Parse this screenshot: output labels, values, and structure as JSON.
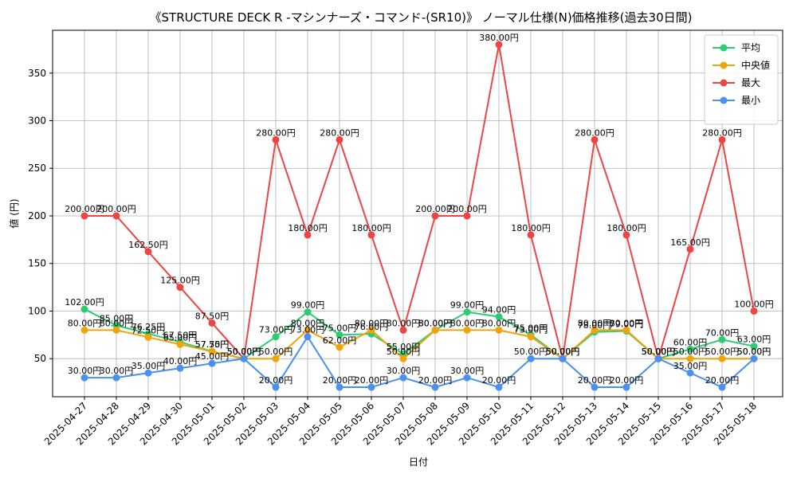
{
  "chart_data": {
    "type": "line",
    "title": "《STRUCTURE DECK R -マシンナーズ・コマンド-(SR10)》 ノーマル仕様(N)価格推移(過去30日間)",
    "xlabel": "日付",
    "ylabel": "値 (円)",
    "ylim": [
      10,
      395
    ],
    "yticks": [
      50,
      100,
      150,
      200,
      250,
      300,
      350
    ],
    "grid": true,
    "legend_position": "top-right",
    "label_suffix": "円",
    "categories": [
      "2025-04-27",
      "2025-04-28",
      "2025-04-29",
      "2025-04-30",
      "2025-05-01",
      "2025-05-02",
      "2025-05-03",
      "2025-05-04",
      "2025-05-05",
      "2025-05-06",
      "2025-05-07",
      "2025-05-08",
      "2025-05-09",
      "2025-05-10",
      "2025-05-11",
      "2025-05-12",
      "2025-05-13",
      "2025-05-14",
      "2025-05-15",
      "2025-05-16",
      "2025-05-17",
      "2025-05-18"
    ],
    "series": [
      {
        "name": "平均",
        "color": "#2ecc71",
        "values": [
          102,
          85,
          76.25,
          67.5,
          57.75,
          50,
          73,
          99,
          75,
          76,
          55,
          80,
          99,
          94,
          75,
          50,
          78,
          79,
          50,
          60,
          70,
          63
        ]
      },
      {
        "name": "中央値",
        "color": "#f0a30a",
        "values": [
          80,
          80,
          72.5,
          65,
          57.5,
          50,
          50,
          80,
          62,
          80,
          50,
          80,
          80,
          80,
          73,
          50,
          80,
          80,
          50,
          50,
          50,
          50
        ]
      },
      {
        "name": "最大",
        "color": "#ef4444",
        "values": [
          200,
          200,
          162.5,
          125,
          87.5,
          50,
          280,
          180,
          280,
          180,
          80,
          200,
          200,
          380,
          180,
          50,
          280,
          180,
          50,
          165,
          280,
          100
        ]
      },
      {
        "name": "最小",
        "color": "#4a90f0",
        "values": [
          30,
          30,
          35,
          40,
          45,
          50,
          20,
          73,
          20,
          20,
          30,
          20,
          30,
          20,
          50,
          50,
          20,
          20,
          50,
          35,
          20,
          50
        ]
      }
    ]
  }
}
